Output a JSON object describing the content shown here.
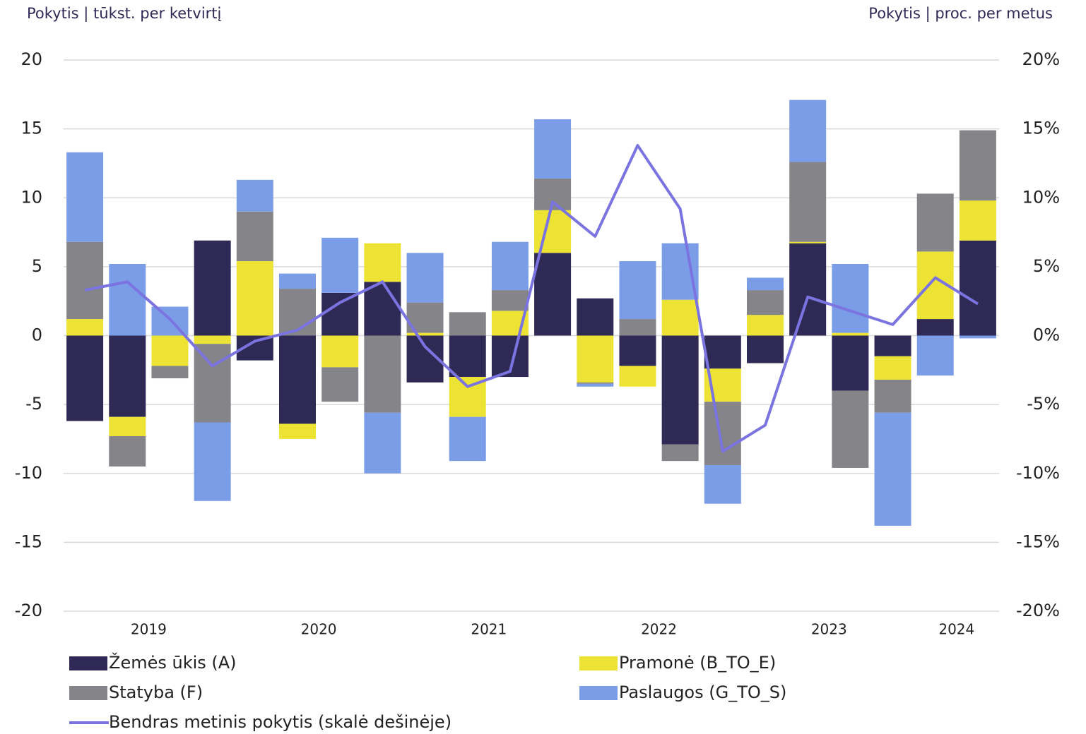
{
  "chart_data": {
    "type": "bar",
    "y_label": "Pokytis | tūkst. per ketvirtį",
    "y2_label": "Pokytis | proc. per metus",
    "stacked": true,
    "categories": [
      null,
      null,
      "2019",
      null,
      null,
      null,
      "2020",
      null,
      null,
      null,
      "2021",
      null,
      null,
      null,
      "2022",
      null,
      null,
      null,
      "2023",
      null,
      null,
      "2024"
    ],
    "series": [
      {
        "name": "Žemės ūkis (A)",
        "color": "#2e2a55",
        "type": "bar",
        "values": [
          -6.2,
          -5.9,
          0,
          6.9,
          -1.8,
          -6.4,
          3.1,
          3.9,
          -3.4,
          -3.0,
          -3.0,
          6.0,
          2.7,
          -2.2,
          -7.9,
          -2.4,
          -2.0,
          6.7,
          -4.0,
          -1.5,
          1.2,
          6.9
        ]
      },
      {
        "name": "Pramonė (B_TO_E)",
        "color": "#ede335",
        "type": "bar",
        "values": [
          1.2,
          -1.4,
          -2.2,
          -0.6,
          5.4,
          -1.1,
          -2.3,
          2.8,
          0.2,
          -2.9,
          1.8,
          3.1,
          -3.4,
          -1.5,
          2.6,
          -2.4,
          1.5,
          0.1,
          0.2,
          -1.7,
          4.9,
          2.9
        ]
      },
      {
        "name": "Statyba (F)",
        "color": "#858589",
        "type": "bar",
        "values": [
          5.6,
          -2.2,
          -0.9,
          -5.7,
          3.6,
          3.4,
          -2.5,
          -5.6,
          2.2,
          1.7,
          1.5,
          2.3,
          -0.1,
          1.2,
          -1.2,
          -4.6,
          1.8,
          5.8,
          -5.6,
          -2.4,
          4.2,
          5.1
        ]
      },
      {
        "name": "Paslaugos (G_TO_S)",
        "color": "#7b9de8",
        "type": "bar",
        "values": [
          6.5,
          5.2,
          2.1,
          -5.7,
          2.3,
          1.1,
          4.0,
          -4.4,
          3.6,
          -3.2,
          3.5,
          4.3,
          -0.2,
          4.2,
          4.1,
          -2.8,
          0.9,
          4.5,
          5.0,
          -8.2,
          -2.9,
          -0.2
        ]
      },
      {
        "name": "Bendras metinis pokytis (skalė dešinėje)",
        "color": "#7b74e0",
        "type": "line",
        "axis": "y2",
        "values": [
          3.3,
          3.9,
          1.2,
          -2.2,
          -0.4,
          0.4,
          2.4,
          3.9,
          -0.8,
          -3.7,
          -2.6,
          9.7,
          7.2,
          13.8,
          9.2,
          -8.4,
          -6.5,
          2.8,
          1.8,
          0.8,
          4.2,
          2.3
        ]
      }
    ],
    "ylim": [
      -20,
      20
    ],
    "yticks": [
      -20,
      -15,
      -10,
      -5,
      0,
      5,
      10,
      15,
      20
    ],
    "y2lim": [
      -20,
      20
    ],
    "y2ticks": [
      {
        "value": -20,
        "label": "-20%"
      },
      {
        "value": -15,
        "label": "-15%"
      },
      {
        "value": -10,
        "label": "-10%"
      },
      {
        "value": -5,
        "label": "-5%"
      },
      {
        "value": 0,
        "label": "0%"
      },
      {
        "value": 5,
        "label": "5%"
      },
      {
        "value": 10,
        "label": "10%"
      },
      {
        "value": 15,
        "label": "15%"
      },
      {
        "value": 20,
        "label": "20%"
      }
    ],
    "grid": true,
    "legend": "bottom"
  }
}
